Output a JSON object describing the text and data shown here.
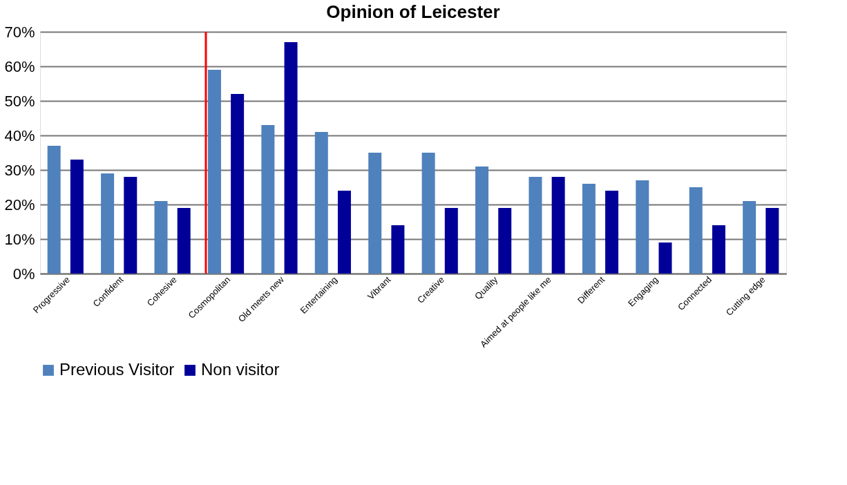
{
  "chart_data": {
    "type": "bar",
    "title": "Opinion of Leicester",
    "categories": [
      "Progressive",
      "Confident",
      "Cohesive",
      "Cosmopolitan",
      "Old meets new",
      "Entertaining",
      "Vibrant",
      "Creative",
      "Quality",
      "Aimed at people like me",
      "Different",
      "Engaging",
      "Connected",
      "Cutting edge"
    ],
    "series": [
      {
        "name": "Previous Visitor",
        "color": "#4f81bd",
        "values": [
          37,
          29,
          21,
          59,
          43,
          41,
          35,
          35,
          31,
          28,
          26,
          27,
          25,
          21
        ]
      },
      {
        "name": "Non visitor",
        "color": "#000099",
        "values": [
          33,
          28,
          19,
          52,
          67,
          24,
          14,
          19,
          19,
          28,
          24,
          9,
          14,
          19
        ]
      }
    ],
    "ylim": [
      0,
      70
    ],
    "yticks": [
      {
        "value": 0,
        "label": "0%"
      },
      {
        "value": 10,
        "label": "10%"
      },
      {
        "value": 20,
        "label": "20%"
      },
      {
        "value": 30,
        "label": "30%"
      },
      {
        "value": 40,
        "label": "40%"
      },
      {
        "value": 50,
        "label": "50%"
      },
      {
        "value": 60,
        "label": "60%"
      },
      {
        "value": 70,
        "label": "70%"
      }
    ],
    "ref_lines": [
      {
        "axis": "x",
        "value": "Cosmopolitan",
        "color": "#ff0000"
      }
    ],
    "grid": "y",
    "legend": "bottom"
  }
}
